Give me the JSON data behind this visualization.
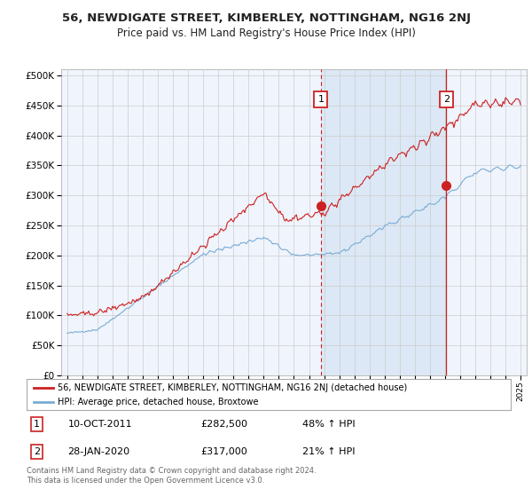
{
  "title": "56, NEWDIGATE STREET, KIMBERLEY, NOTTINGHAM, NG16 2NJ",
  "subtitle": "Price paid vs. HM Land Registry's House Price Index (HPI)",
  "footnote": "Contains HM Land Registry data © Crown copyright and database right 2024.\nThis data is licensed under the Open Government Licence v3.0.",
  "legend_line1": "56, NEWDIGATE STREET, KIMBERLEY, NOTTINGHAM, NG16 2NJ (detached house)",
  "legend_line2": "HPI: Average price, detached house, Broxtowe",
  "annotation1": {
    "label": "1",
    "date_str": "10-OCT-2011",
    "price": 282500,
    "pct": "48% ↑ HPI",
    "x_year": 2011.78
  },
  "annotation2": {
    "label": "2",
    "date_str": "28-JAN-2020",
    "price": 317000,
    "pct": "21% ↑ HPI",
    "x_year": 2020.08
  },
  "red_color": "#cc2222",
  "blue_color": "#7aadd4",
  "shade_color": "#dce8f5",
  "background_color": "#f0f4fc",
  "grid_color": "#cccccc",
  "ylim": [
    0,
    510000
  ],
  "yticks": [
    0,
    50000,
    100000,
    150000,
    200000,
    250000,
    300000,
    350000,
    400000,
    450000,
    500000
  ],
  "xlim_start": 1994.6,
  "xlim_end": 2025.4,
  "figwidth": 6.0,
  "figheight": 5.6,
  "dpi": 100
}
